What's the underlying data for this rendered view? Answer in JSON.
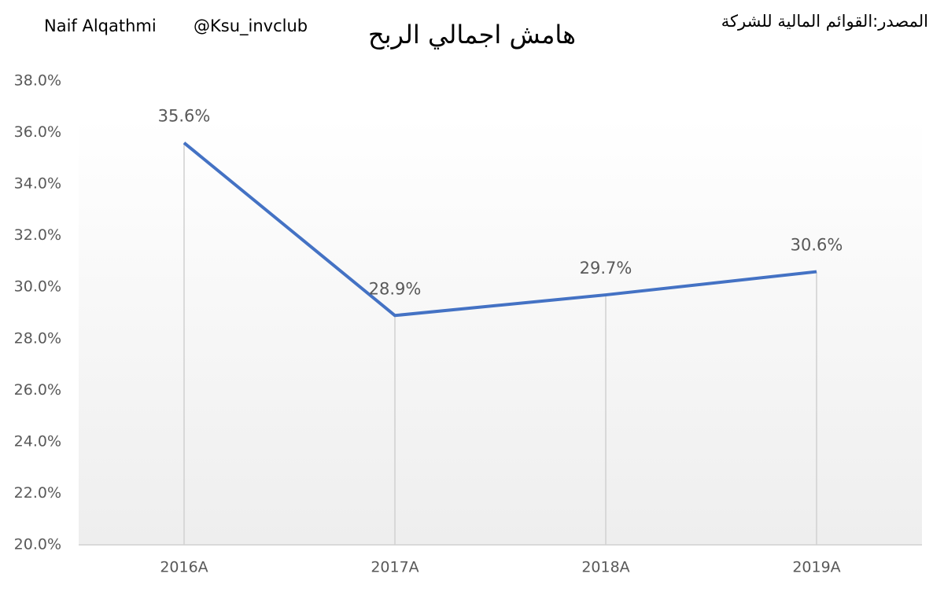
{
  "chart_data": {
    "type": "line",
    "title": "هامش اجمالي الربح",
    "author": "Naif Alqathmi",
    "handle": "@Ksu_invclub",
    "source": "المصدر:القوائم المالية للشركة",
    "categories": [
      "2016A",
      "2017A",
      "2018A",
      "2019A"
    ],
    "series": [
      {
        "name": "هامش اجمالي الربح",
        "color": "#4472c4",
        "values": [
          35.6,
          28.9,
          29.7,
          30.6
        ],
        "value_labels": [
          "35.6%",
          "28.9%",
          "29.7%",
          "30.6%"
        ]
      }
    ],
    "ylim": [
      20,
      38
    ],
    "yticks": [
      {
        "value": 20,
        "label": "20.0%"
      },
      {
        "value": 22,
        "label": "22.0%"
      },
      {
        "value": 24,
        "label": "24.0%"
      },
      {
        "value": 26,
        "label": "26.0%"
      },
      {
        "value": 28,
        "label": "28.0%"
      },
      {
        "value": 30,
        "label": "30.0%"
      },
      {
        "value": 32,
        "label": "32.0%"
      },
      {
        "value": 34,
        "label": "34.0%"
      },
      {
        "value": 36,
        "label": "36.0%"
      },
      {
        "value": 38,
        "label": "38.0%"
      }
    ],
    "grid": false,
    "drop_lines": true
  }
}
